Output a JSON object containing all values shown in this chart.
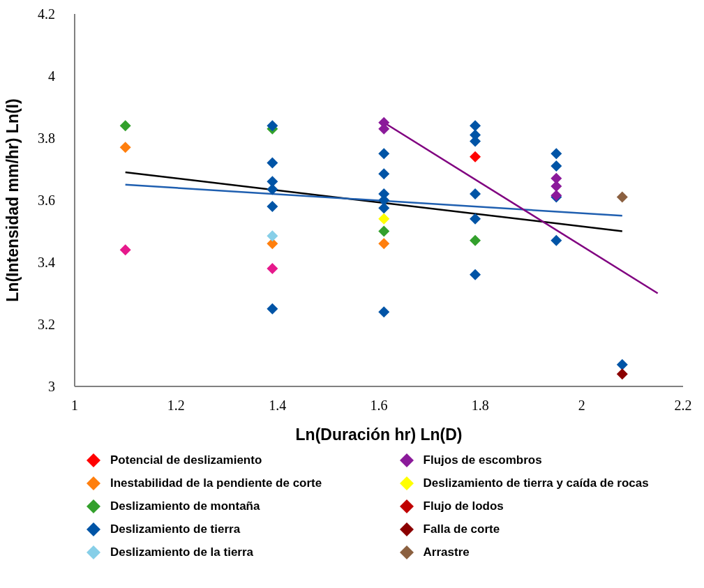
{
  "chart_data": {
    "type": "scatter",
    "xlabel": "Ln(Duración hr) Ln(D)",
    "ylabel": "Ln(Intensidad mm/hr) Ln(I)",
    "xlim": [
      1,
      2.2
    ],
    "xticks": [
      1,
      1.2,
      1.4,
      1.6,
      1.8,
      2,
      2.2
    ],
    "ylim": [
      3,
      4.2
    ],
    "yticks": [
      3,
      3.2,
      3.4,
      3.6,
      3.8,
      4,
      4.2
    ],
    "marker": "diamond",
    "legend": "bottom",
    "grid": false,
    "series": [
      {
        "name": "Potencial de deslizamiento",
        "color": "#ff0000",
        "x": [
          1.79
        ],
        "values": [
          3.74
        ]
      },
      {
        "name": "Inestabilidad de la pendiente de corte",
        "color": "#ff7f0e",
        "x": [
          1.1,
          1.39,
          1.61
        ],
        "values": [
          3.77,
          3.46,
          3.46
        ]
      },
      {
        "name": "Deslizamiento de montaña",
        "color": "#33a02c",
        "x": [
          1.1,
          1.39,
          1.61,
          1.79
        ],
        "values": [
          3.84,
          3.83,
          3.5,
          3.47
        ]
      },
      {
        "name": "Deslizamiento de tierra",
        "color": "#0054a6",
        "x": [
          1.39,
          1.39,
          1.39,
          1.39,
          1.39,
          1.39,
          1.61,
          1.61,
          1.61,
          1.61,
          1.61,
          1.61,
          1.79,
          1.79,
          1.79,
          1.79,
          1.79,
          1.79,
          1.95,
          1.95,
          1.95,
          1.95,
          2.08
        ],
        "values": [
          3.84,
          3.72,
          3.66,
          3.635,
          3.58,
          3.25,
          3.75,
          3.685,
          3.62,
          3.6,
          3.575,
          3.24,
          3.84,
          3.81,
          3.79,
          3.62,
          3.54,
          3.36,
          3.75,
          3.71,
          3.61,
          3.47,
          3.07
        ]
      },
      {
        "name": "Deslizamiento de la tierra",
        "color": "#87cfe8",
        "x": [
          1.39
        ],
        "values": [
          3.485
        ]
      },
      {
        "name": "Flujos de escombros",
        "color": "#8b1a9a",
        "x": [
          1.61,
          1.61,
          1.95,
          1.95,
          1.95
        ],
        "values": [
          3.85,
          3.83,
          3.67,
          3.645,
          3.615
        ]
      },
      {
        "name": "Deslizamiento de tierra y caída de rocas",
        "color": "#ffff00",
        "x": [
          1.61
        ],
        "values": [
          3.54
        ]
      },
      {
        "name": "Flujo de lodos",
        "color": "#c00000"
      },
      {
        "name": "Falla de corte",
        "color": "#8b0000",
        "x": [
          2.08
        ],
        "values": [
          3.04
        ]
      },
      {
        "name": "Arrastre",
        "color": "#8b6040",
        "x": [
          2.08
        ],
        "values": [
          3.61
        ]
      },
      {
        "color": "#e6198c",
        "x": [
          1.1,
          1.39
        ],
        "values": [
          3.44,
          3.38
        ]
      },
      {
        "type": "line",
        "marker": "none",
        "color": "#000000",
        "x": [
          1.1,
          2.08
        ],
        "values": [
          3.69,
          3.5
        ]
      },
      {
        "type": "line",
        "marker": "none",
        "color": "#1f5fb0",
        "x": [
          1.1,
          2.08
        ],
        "values": [
          3.65,
          3.55
        ]
      },
      {
        "type": "line",
        "marker": "none",
        "color": "#800080",
        "x": [
          1.61,
          2.15
        ],
        "values": [
          3.85,
          3.3
        ]
      }
    ]
  }
}
